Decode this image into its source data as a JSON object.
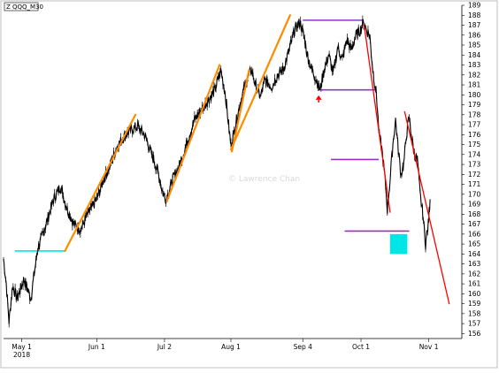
{
  "chart_data": {
    "type": "line",
    "title": "Z QQQ_M30",
    "watermark": "© Lawrence Chan",
    "xlabel": "",
    "ylabel": "",
    "ylim": [
      155.5,
      189
    ],
    "grid": false,
    "y_ticks": [
      156,
      157,
      158,
      159,
      160,
      161,
      162,
      163,
      164,
      165,
      166,
      167,
      168,
      169,
      170,
      171,
      172,
      173,
      174,
      175,
      176,
      177,
      178,
      179,
      180,
      181,
      182,
      183,
      184,
      185,
      186,
      187,
      188,
      189
    ],
    "x_ticks": [
      {
        "label": "May 1",
        "sublabel": "2018",
        "t": 0.04
      },
      {
        "label": "Jun 1",
        "sublabel": "",
        "t": 0.205
      },
      {
        "label": "Jul 2",
        "sublabel": "",
        "t": 0.354
      },
      {
        "label": "Aug 1",
        "sublabel": "",
        "t": 0.5
      },
      {
        "label": "Sep 4",
        "sublabel": "",
        "t": 0.658
      },
      {
        "label": "Oct 1",
        "sublabel": "",
        "t": 0.786
      },
      {
        "label": "Nov 1",
        "sublabel": "",
        "t": 0.935
      }
    ],
    "price_anchors": [
      {
        "t": 0.0,
        "y": 163.5
      },
      {
        "t": 0.006,
        "y": 161.0
      },
      {
        "t": 0.012,
        "y": 157.2
      },
      {
        "t": 0.02,
        "y": 160.8
      },
      {
        "t": 0.03,
        "y": 159.5
      },
      {
        "t": 0.045,
        "y": 161.5
      },
      {
        "t": 0.06,
        "y": 159.5
      },
      {
        "t": 0.075,
        "y": 164.5
      },
      {
        "t": 0.09,
        "y": 166.5
      },
      {
        "t": 0.11,
        "y": 169.5
      },
      {
        "t": 0.125,
        "y": 170.8
      },
      {
        "t": 0.14,
        "y": 168.5
      },
      {
        "t": 0.155,
        "y": 167.0
      },
      {
        "t": 0.17,
        "y": 166.5
      },
      {
        "t": 0.185,
        "y": 168.0
      },
      {
        "t": 0.205,
        "y": 169.5
      },
      {
        "t": 0.22,
        "y": 171.5
      },
      {
        "t": 0.235,
        "y": 173.0
      },
      {
        "t": 0.25,
        "y": 174.8
      },
      {
        "t": 0.265,
        "y": 175.8
      },
      {
        "t": 0.28,
        "y": 176.5
      },
      {
        "t": 0.295,
        "y": 176.8
      },
      {
        "t": 0.31,
        "y": 176.0
      },
      {
        "t": 0.322,
        "y": 174.5
      },
      {
        "t": 0.338,
        "y": 172.5
      },
      {
        "t": 0.35,
        "y": 170.2
      },
      {
        "t": 0.358,
        "y": 169.5
      },
      {
        "t": 0.372,
        "y": 171.5
      },
      {
        "t": 0.388,
        "y": 173.0
      },
      {
        "t": 0.405,
        "y": 175.5
      },
      {
        "t": 0.42,
        "y": 177.5
      },
      {
        "t": 0.435,
        "y": 178.5
      },
      {
        "t": 0.45,
        "y": 179.5
      },
      {
        "t": 0.465,
        "y": 180.5
      },
      {
        "t": 0.478,
        "y": 182.5
      },
      {
        "t": 0.488,
        "y": 180.0
      },
      {
        "t": 0.496,
        "y": 176.5
      },
      {
        "t": 0.5,
        "y": 174.8
      },
      {
        "t": 0.51,
        "y": 177.0
      },
      {
        "t": 0.522,
        "y": 179.5
      },
      {
        "t": 0.535,
        "y": 181.5
      },
      {
        "t": 0.545,
        "y": 182.5
      },
      {
        "t": 0.555,
        "y": 180.8
      },
      {
        "t": 0.565,
        "y": 179.8
      },
      {
        "t": 0.575,
        "y": 181.5
      },
      {
        "t": 0.59,
        "y": 180.8
      },
      {
        "t": 0.602,
        "y": 182.0
      },
      {
        "t": 0.615,
        "y": 182.5
      },
      {
        "t": 0.628,
        "y": 184.5
      },
      {
        "t": 0.64,
        "y": 186.5
      },
      {
        "t": 0.652,
        "y": 187.3
      },
      {
        "t": 0.66,
        "y": 186.0
      },
      {
        "t": 0.668,
        "y": 184.0
      },
      {
        "t": 0.678,
        "y": 182.5
      },
      {
        "t": 0.688,
        "y": 181.5
      },
      {
        "t": 0.696,
        "y": 180.5
      },
      {
        "t": 0.705,
        "y": 182.5
      },
      {
        "t": 0.715,
        "y": 184.0
      },
      {
        "t": 0.725,
        "y": 182.2
      },
      {
        "t": 0.735,
        "y": 184.8
      },
      {
        "t": 0.745,
        "y": 183.5
      },
      {
        "t": 0.755,
        "y": 185.5
      },
      {
        "t": 0.765,
        "y": 184.5
      },
      {
        "t": 0.775,
        "y": 186.0
      },
      {
        "t": 0.785,
        "y": 186.5
      },
      {
        "t": 0.792,
        "y": 187.4
      },
      {
        "t": 0.798,
        "y": 186.5
      },
      {
        "t": 0.805,
        "y": 186.0
      },
      {
        "t": 0.812,
        "y": 182.5
      },
      {
        "t": 0.82,
        "y": 180.0
      },
      {
        "t": 0.826,
        "y": 176.0
      },
      {
        "t": 0.832,
        "y": 174.5
      },
      {
        "t": 0.838,
        "y": 172.0
      },
      {
        "t": 0.844,
        "y": 168.5
      },
      {
        "t": 0.85,
        "y": 171.5
      },
      {
        "t": 0.856,
        "y": 175.0
      },
      {
        "t": 0.862,
        "y": 177.5
      },
      {
        "t": 0.868,
        "y": 174.5
      },
      {
        "t": 0.874,
        "y": 172.0
      },
      {
        "t": 0.88,
        "y": 173.0
      },
      {
        "t": 0.886,
        "y": 176.0
      },
      {
        "t": 0.892,
        "y": 177.8
      },
      {
        "t": 0.898,
        "y": 175.5
      },
      {
        "t": 0.904,
        "y": 174.0
      },
      {
        "t": 0.91,
        "y": 173.5
      },
      {
        "t": 0.916,
        "y": 170.0
      },
      {
        "t": 0.922,
        "y": 168.0
      },
      {
        "t": 0.928,
        "y": 165.0
      },
      {
        "t": 0.934,
        "y": 167.0
      },
      {
        "t": 0.938,
        "y": 169.5
      }
    ],
    "trend_lines": [
      {
        "color": "#ff8c00",
        "from": {
          "t": 0.135,
          "y": 164.3
        },
        "to": {
          "t": 0.29,
          "y": 178.0
        }
      },
      {
        "color": "#ff8c00",
        "from": {
          "t": 0.359,
          "y": 169.3
        },
        "to": {
          "t": 0.475,
          "y": 183.0
        }
      },
      {
        "color": "#ff8c00",
        "from": {
          "t": 0.502,
          "y": 174.3
        },
        "to": {
          "t": 0.54,
          "y": 182.5
        }
      },
      {
        "color": "#ff8c00",
        "from": {
          "t": 0.5,
          "y": 174.5
        },
        "to": {
          "t": 0.63,
          "y": 188.0
        }
      },
      {
        "color": "#ff0000",
        "from": {
          "t": 0.793,
          "y": 187.0
        },
        "to": {
          "t": 0.85,
          "y": 168.2
        }
      },
      {
        "color": "#ff0000",
        "from": {
          "t": 0.882,
          "y": 178.3
        },
        "to": {
          "t": 0.98,
          "y": 159.0
        }
      }
    ],
    "level_lines": [
      {
        "color": "#00e5e5",
        "y": 164.3,
        "t0": 0.025,
        "t1": 0.135
      },
      {
        "color": "#9b30c8",
        "y": 187.5,
        "t0": 0.658,
        "t1": 0.79
      },
      {
        "color": "#9b30c8",
        "y": 180.5,
        "t0": 0.693,
        "t1": 0.82
      },
      {
        "color": "#9b30c8",
        "y": 173.5,
        "t0": 0.72,
        "t1": 0.825
      },
      {
        "color": "#9b30c8",
        "y": 166.3,
        "t0": 0.75,
        "t1": 0.892
      }
    ],
    "boxes": [
      {
        "color": "#00e5e5",
        "t0": 0.85,
        "t1": 0.888,
        "y_top": 166.0,
        "y_bottom": 164.0
      }
    ],
    "arrows": [
      {
        "color": "#ff0000",
        "t": 0.693,
        "y": 179.5,
        "direction": "up"
      }
    ]
  }
}
